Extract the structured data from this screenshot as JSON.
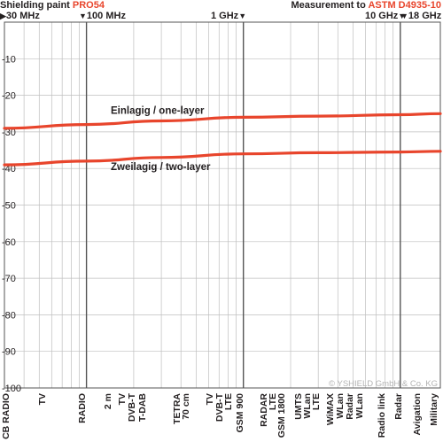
{
  "header": {
    "title_prefix": "Shielding paint ",
    "product": "PRO54",
    "measurement_prefix": "Measurement to ",
    "standard": "ASTM D4935-10"
  },
  "frequency_markers": [
    {
      "arrow": "▶",
      "label": "30 MHz",
      "arrow_side": "left"
    },
    {
      "arrow": "▼",
      "label": "100 MHz",
      "arrow_side": "left"
    },
    {
      "arrow": "▼",
      "label": "1 GHz",
      "arrow_side": "right"
    },
    {
      "arrow": "▼",
      "label": "10 GHz",
      "arrow_side": "right"
    },
    {
      "arrow": "▼",
      "label": "18 GHz",
      "arrow_side": "left"
    }
  ],
  "copyright": "© YSHIELD GmbH & Co. KG",
  "chart_data": {
    "type": "line",
    "title": "Shielding paint PRO54",
    "xscale": "log",
    "xlim": [
      30,
      18000
    ],
    "ylim": [
      -100,
      0
    ],
    "yticks": [
      -10,
      -20,
      -30,
      -40,
      -50,
      -60,
      -70,
      -80,
      -90,
      -100
    ],
    "grid": true,
    "legend": "none",
    "colors": {
      "series": "#e8452c",
      "accent": "#e8452c",
      "text": "#231f20",
      "grid": "#bfbfbf",
      "major_grid": "#555555"
    },
    "series": [
      {
        "name": "Einlagig / one-layer",
        "x": [
          30,
          100,
          300,
          1000,
          3000,
          10000,
          18000
        ],
        "y": [
          -29,
          -28,
          -27,
          -26,
          -25.7,
          -25.3,
          -25
        ]
      },
      {
        "name": "Zweilagig / two-layer",
        "x": [
          30,
          100,
          300,
          1000,
          3000,
          10000,
          18000
        ],
        "y": [
          -39,
          -38,
          -37,
          -36,
          -35.7,
          -35.5,
          -35.3
        ]
      }
    ],
    "bands": [
      "CB RADIO",
      "TV",
      "RADIO",
      "2 m",
      "TV",
      "DVB-T",
      "T-DAB",
      "TETRA",
      "70 cm",
      "TV",
      "DVB-T",
      "LTE",
      "GSM 900",
      "RADAR",
      "LTE",
      "GSM 1800",
      "UMTS",
      "WLan",
      "LTE",
      "WiMAX",
      "WLan",
      "Radar",
      "WLan",
      "Radio link",
      "Radar",
      "Avigation",
      "Military"
    ]
  }
}
